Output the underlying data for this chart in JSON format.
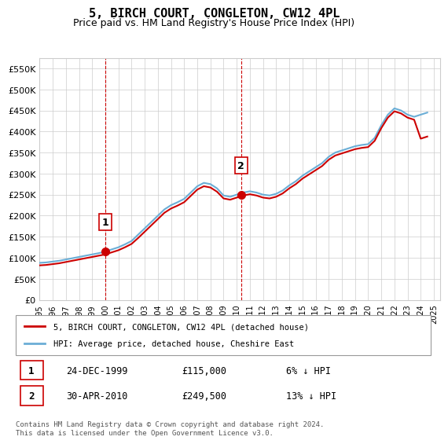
{
  "title": "5, BIRCH COURT, CONGLETON, CW12 4PL",
  "subtitle": "Price paid vs. HM Land Registry's House Price Index (HPI)",
  "ylabel_ticks": [
    "£0",
    "£50K",
    "£100K",
    "£150K",
    "£200K",
    "£250K",
    "£300K",
    "£350K",
    "£400K",
    "£450K",
    "£500K",
    "£550K"
  ],
  "ytick_vals": [
    0,
    50000,
    100000,
    150000,
    200000,
    250000,
    300000,
    350000,
    400000,
    450000,
    500000,
    550000
  ],
  "ylim": [
    0,
    575000
  ],
  "xmin": 1995.0,
  "xmax": 2025.5,
  "sale1": {
    "year": 1999.98,
    "price": 115000,
    "label": "1",
    "date": "24-DEC-1999"
  },
  "sale2": {
    "year": 2010.33,
    "price": 249500,
    "label": "2",
    "date": "30-APR-2010"
  },
  "legend_property": "5, BIRCH COURT, CONGLETON, CW12 4PL (detached house)",
  "legend_hpi": "HPI: Average price, detached house, Cheshire East",
  "footer": "Contains HM Land Registry data © Crown copyright and database right 2024.\nThis data is licensed under the Open Government Licence v3.0.",
  "table": [
    {
      "num": "1",
      "date": "24-DEC-1999",
      "price": "£115,000",
      "pct": "6% ↓ HPI"
    },
    {
      "num": "2",
      "date": "30-APR-2010",
      "price": "£249,500",
      "pct": "13% ↓ HPI"
    }
  ],
  "hpi_color": "#6baed6",
  "price_color": "#cc0000",
  "background_color": "#ffffff",
  "grid_color": "#cccccc",
  "vline_color": "#cc0000"
}
